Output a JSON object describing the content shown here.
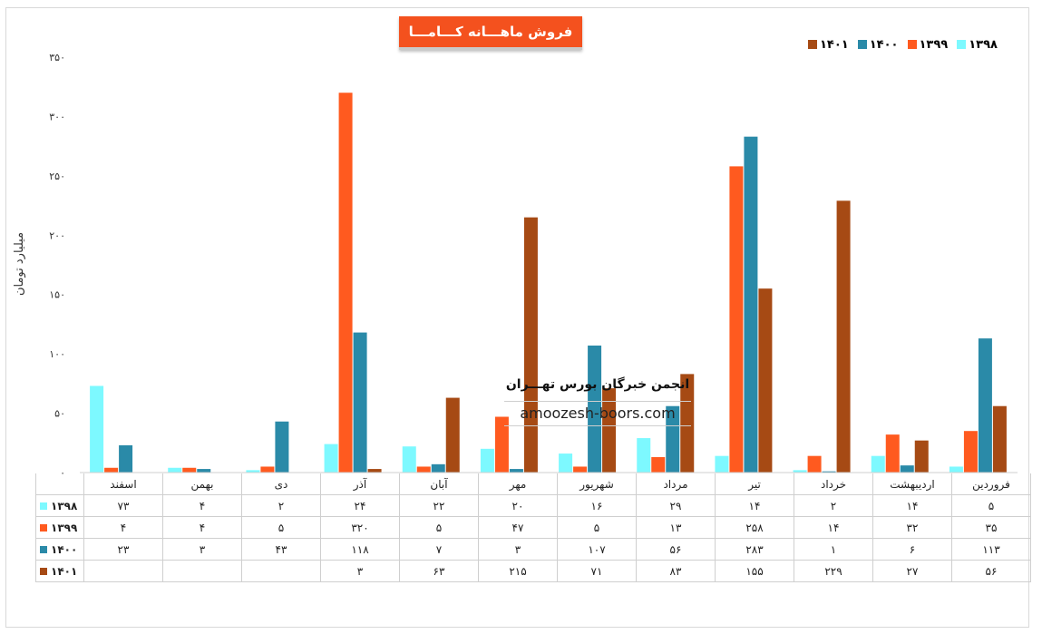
{
  "title": "فروش ماهـــانه کـــامـــا",
  "watermark": {
    "title": "انجمن خبرگان بورس تهـــران",
    "url": "amoozesh-boors.com"
  },
  "chart_data": {
    "type": "bar",
    "title": "فروش ماهـــانه کـــامـــا",
    "ylabel": "میلیارد تومان",
    "xlabel": "",
    "ylim": [
      0,
      350
    ],
    "yticks": [
      "۰",
      "۵۰",
      "۱۰۰",
      "۱۵۰",
      "۲۰۰",
      "۲۵۰",
      "۳۰۰",
      "۳۵۰"
    ],
    "categories": [
      "فروردین",
      "اردیبهشت",
      "خرداد",
      "تیر",
      "مرداد",
      "شهریور",
      "مهر",
      "آبان",
      "آذر",
      "دی",
      "بهمن",
      "اسفند"
    ],
    "legend_position": "top-right",
    "series": [
      {
        "name": "۱۳۹۸",
        "color": "#7df9ff",
        "values": [
          5,
          14,
          2,
          14,
          29,
          16,
          20,
          22,
          24,
          2,
          4,
          73
        ],
        "labels": [
          "۵",
          "۱۴",
          "۲",
          "۱۴",
          "۲۹",
          "۱۶",
          "۲۰",
          "۲۲",
          "۲۴",
          "۲",
          "۴",
          "۷۳"
        ]
      },
      {
        "name": "۱۳۹۹",
        "color": "#ff5a1f",
        "values": [
          35,
          32,
          14,
          258,
          13,
          5,
          47,
          5,
          320,
          5,
          4,
          4
        ],
        "labels": [
          "۳۵",
          "۳۲",
          "۱۴",
          "۲۵۸",
          "۱۳",
          "۵",
          "۴۷",
          "۵",
          "۳۲۰",
          "۵",
          "۴",
          "۴"
        ]
      },
      {
        "name": "۱۴۰۰",
        "color": "#2a8aa8",
        "values": [
          113,
          6,
          1,
          283,
          56,
          107,
          3,
          7,
          118,
          43,
          3,
          23
        ],
        "labels": [
          "۱۱۳",
          "۶",
          "۱",
          "۲۸۳",
          "۵۶",
          "۱۰۷",
          "۳",
          "۷",
          "۱۱۸",
          "۴۳",
          "۳",
          "۲۳"
        ]
      },
      {
        "name": "۱۴۰۱",
        "color": "#a64a14",
        "values": [
          56,
          27,
          229,
          155,
          83,
          71,
          215,
          63,
          3,
          null,
          null,
          null
        ],
        "labels": [
          "۵۶",
          "۲۷",
          "۲۲۹",
          "۱۵۵",
          "۸۳",
          "۷۱",
          "۲۱۵",
          "۶۳",
          "۳",
          "",
          "",
          ""
        ]
      }
    ]
  }
}
